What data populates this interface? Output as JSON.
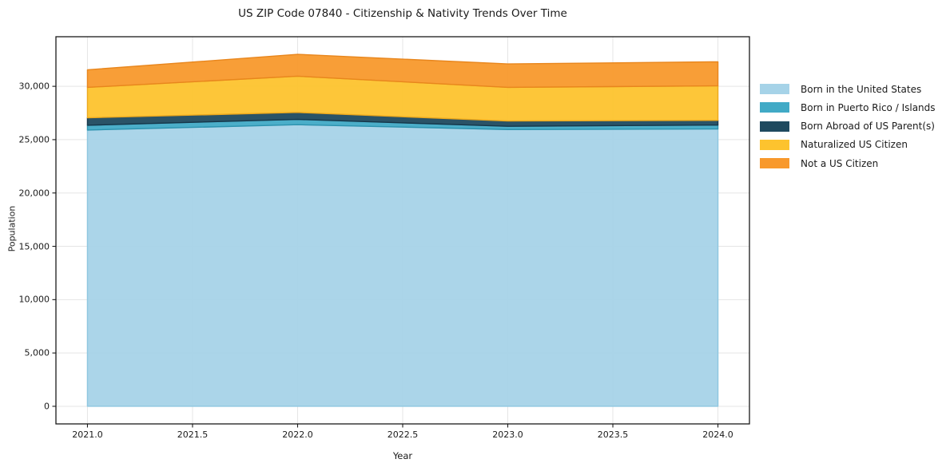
{
  "title": "US ZIP Code 07840 - Citizenship & Nativity Trends Over Time",
  "chart_data": {
    "type": "area",
    "stacked": true,
    "title": "US ZIP Code 07840 - Citizenship & Nativity Trends Over Time",
    "xlabel": "Year",
    "ylabel": "Population",
    "x": [
      2021,
      2022,
      2023,
      2024
    ],
    "series": [
      {
        "name": "Born in the United States",
        "color": "#a6d3e8",
        "edge": "#8ec7e0",
        "values": [
          25900,
          26400,
          25950,
          26000
        ]
      },
      {
        "name": "Born in Puerto Rico / Islands",
        "color": "#41aac6",
        "edge": "#2d93af",
        "values": [
          450,
          500,
          300,
          370
        ]
      },
      {
        "name": "Born Abroad of US Parent(s)",
        "color": "#1f4a5f",
        "edge": "#16374a",
        "values": [
          700,
          650,
          500,
          440
        ]
      },
      {
        "name": "Naturalized US Citizen",
        "color": "#fdc32e",
        "edge": "#eda91d",
        "values": [
          2850,
          3400,
          3150,
          3240
        ]
      },
      {
        "name": "Not a US Citizen",
        "color": "#f8992c",
        "edge": "#e8861d",
        "values": [
          1650,
          2050,
          2200,
          2250
        ]
      }
    ],
    "totals": [
      31550,
      33000,
      32100,
      32300
    ],
    "xlim": [
      2020.85,
      2024.15
    ],
    "ylim": [
      -1650,
      34650
    ],
    "xticks": [
      2021.0,
      2021.5,
      2022.0,
      2022.5,
      2023.0,
      2023.5,
      2024.0
    ],
    "xtick_labels": [
      "2021.0",
      "2021.5",
      "2022.0",
      "2022.5",
      "2023.0",
      "2023.5",
      "2024.0"
    ],
    "yticks": [
      0,
      5000,
      10000,
      15000,
      20000,
      25000,
      30000
    ],
    "ytick_labels": [
      "0",
      "5,000",
      "10,000",
      "15,000",
      "20,000",
      "25,000",
      "30,000"
    ],
    "grid": true,
    "legend_position": "outside-right",
    "colors": {
      "grid": "#e5e5e5",
      "spine": "#1a1a1a",
      "background": "#ffffff",
      "text": "#1a1a1a"
    }
  }
}
